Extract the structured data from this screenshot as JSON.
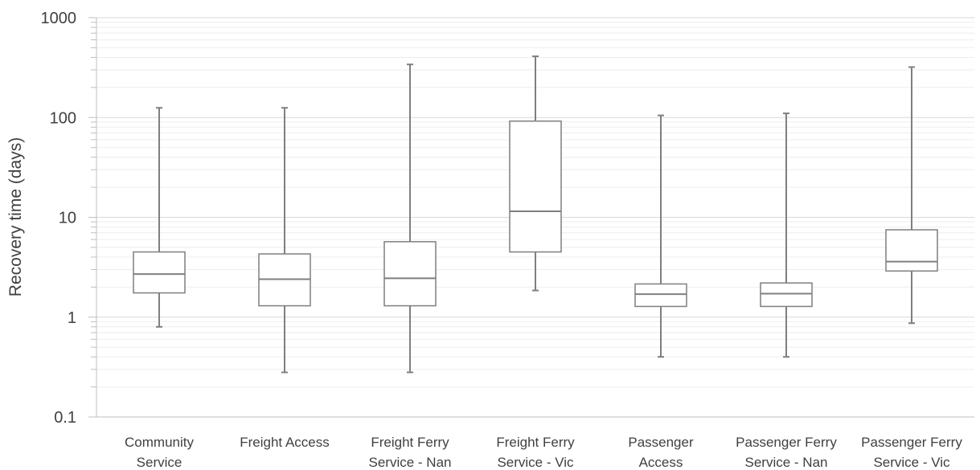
{
  "chart_data": {
    "type": "box",
    "ylabel": "Recovery time (days)",
    "yscale": "log",
    "ylim": [
      0.1,
      1000
    ],
    "yticks": [
      "0.1",
      "1",
      "10",
      "100",
      "1000"
    ],
    "grid": true,
    "categories": [
      [
        "Community",
        "Service"
      ],
      [
        "Freight Access"
      ],
      [
        "Freight Ferry",
        "Service - Nan"
      ],
      [
        "Freight Ferry",
        "Service - Vic"
      ],
      [
        "Passenger",
        "Access"
      ],
      [
        "Passenger Ferry",
        "Service - Nan"
      ],
      [
        "Passenger Ferry",
        "Service - Vic"
      ]
    ],
    "boxes": [
      {
        "min": 0.8,
        "q1": 1.75,
        "median": 2.7,
        "q3": 4.5,
        "max": 125
      },
      {
        "min": 0.28,
        "q1": 1.3,
        "median": 2.4,
        "q3": 4.3,
        "max": 125
      },
      {
        "min": 0.28,
        "q1": 1.3,
        "median": 2.45,
        "q3": 5.7,
        "max": 340
      },
      {
        "min": 1.85,
        "q1": 4.5,
        "median": 11.5,
        "q3": 92,
        "max": 410
      },
      {
        "min": 0.4,
        "q1": 1.28,
        "median": 1.7,
        "q3": 2.15,
        "max": 105
      },
      {
        "min": 0.4,
        "q1": 1.28,
        "median": 1.72,
        "q3": 2.2,
        "max": 110
      },
      {
        "min": 0.87,
        "q1": 2.9,
        "median": 3.6,
        "q3": 7.5,
        "max": 320
      }
    ],
    "colors": {
      "box": "#7f7f7f",
      "grid": "#d9d9d9",
      "axis": "#bfbfbf",
      "text": "#404040"
    }
  }
}
